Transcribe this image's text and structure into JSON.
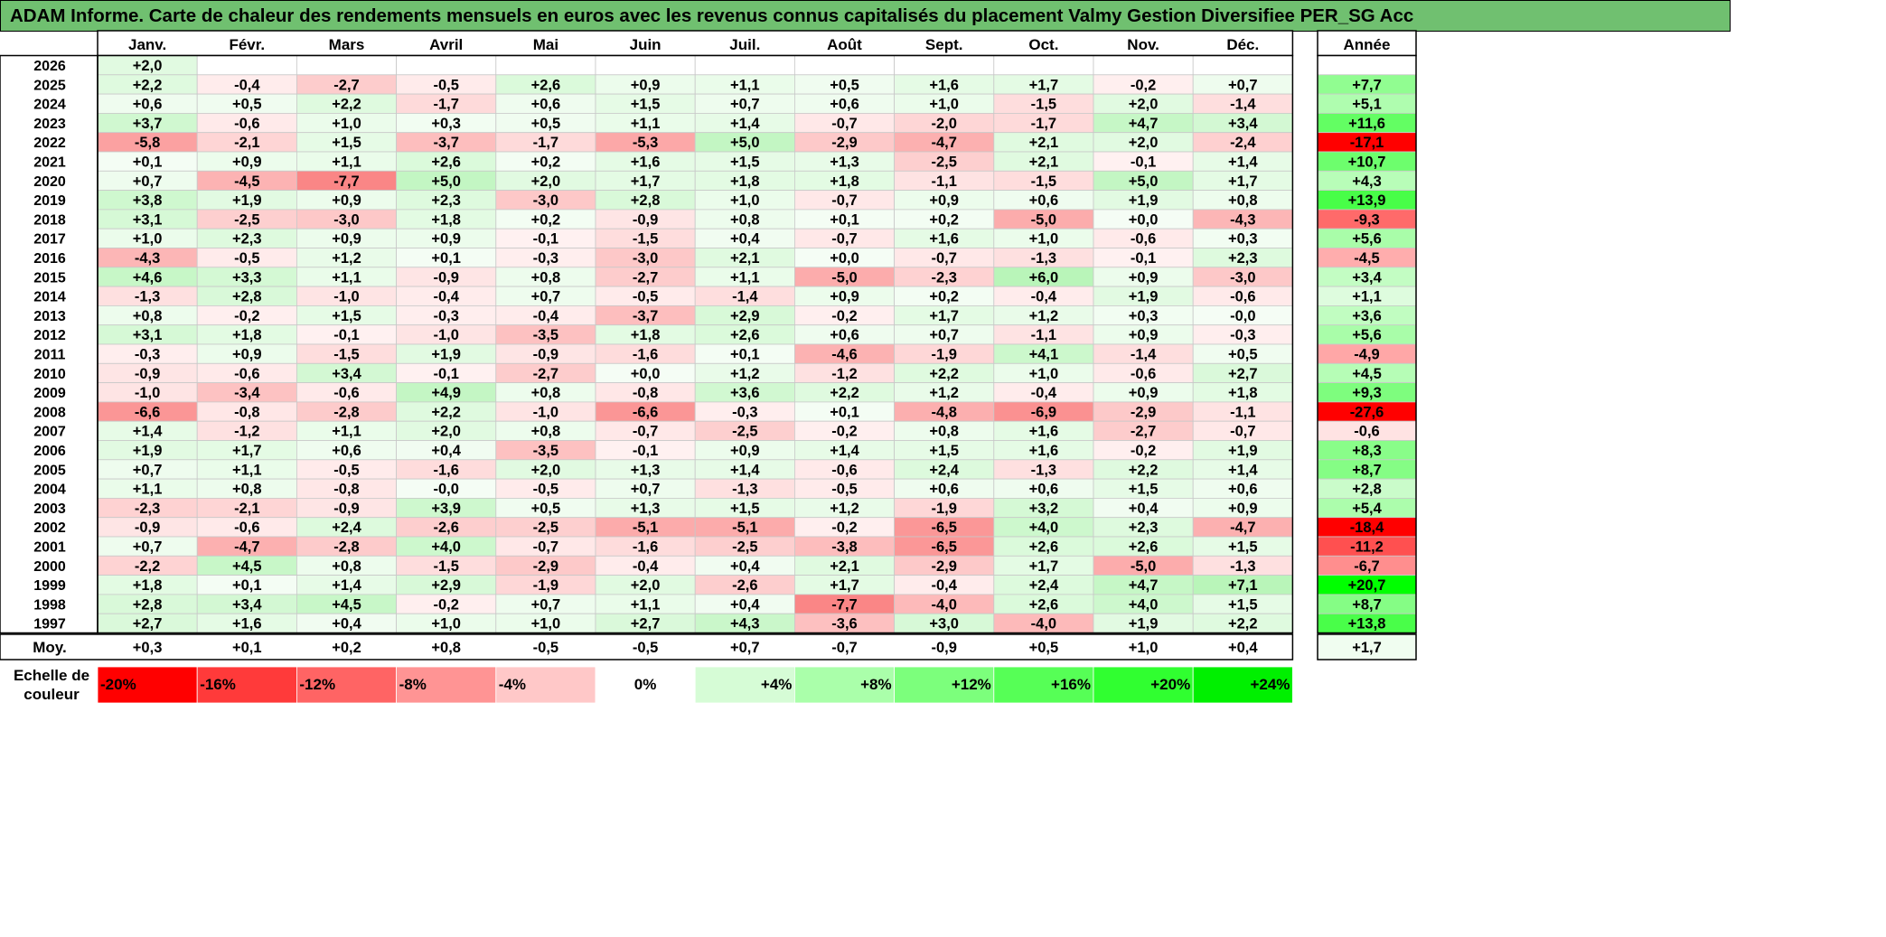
{
  "title": "ADAM Informe. Carte de chaleur des rendements mensuels en euros avec les revenus connus capitalisés du placement Valmy Gestion Diversifiee PER_SG Acc",
  "colors": {
    "title_bg": "#70c070",
    "positive": "#00ff00",
    "negative": "#ff0000",
    "neutral": "#ffffff"
  },
  "chart_data": {
    "type": "heatmap",
    "months": [
      "Janv.",
      "Févr.",
      "Mars",
      "Avril",
      "Mai",
      "Juin",
      "Juil.",
      "Août",
      "Sept.",
      "Oct.",
      "Nov.",
      "Déc."
    ],
    "year_header": "Année",
    "rows": [
      {
        "year": "2026",
        "values": [
          "+2,0",
          "",
          "",
          "",
          "",
          "",
          "",
          "",
          "",
          "",
          "",
          ""
        ],
        "annual": ""
      },
      {
        "year": "2025",
        "values": [
          "+2,2",
          "-0,4",
          "-2,7",
          "-0,5",
          "+2,6",
          "+0,9",
          "+1,1",
          "+0,5",
          "+1,6",
          "+1,7",
          "-0,2",
          "+0,7"
        ],
        "annual": "+7,7"
      },
      {
        "year": "2024",
        "values": [
          "+0,6",
          "+0,5",
          "+2,2",
          "-1,7",
          "+0,6",
          "+1,5",
          "+0,7",
          "+0,6",
          "+1,0",
          "-1,5",
          "+2,0",
          "-1,4"
        ],
        "annual": "+5,1"
      },
      {
        "year": "2023",
        "values": [
          "+3,7",
          "-0,6",
          "+1,0",
          "+0,3",
          "+0,5",
          "+1,1",
          "+1,4",
          "-0,7",
          "-2,0",
          "-1,7",
          "+4,7",
          "+3,4"
        ],
        "annual": "+11,6"
      },
      {
        "year": "2022",
        "values": [
          "-5,8",
          "-2,1",
          "+1,5",
          "-3,7",
          "-1,7",
          "-5,3",
          "+5,0",
          "-2,9",
          "-4,7",
          "+2,1",
          "+2,0",
          "-2,4"
        ],
        "annual": "-17,1"
      },
      {
        "year": "2021",
        "values": [
          "+0,1",
          "+0,9",
          "+1,1",
          "+2,6",
          "+0,2",
          "+1,6",
          "+1,5",
          "+1,3",
          "-2,5",
          "+2,1",
          "-0,1",
          "+1,4"
        ],
        "annual": "+10,7"
      },
      {
        "year": "2020",
        "values": [
          "+0,7",
          "-4,5",
          "-7,7",
          "+5,0",
          "+2,0",
          "+1,7",
          "+1,8",
          "+1,8",
          "-1,1",
          "-1,5",
          "+5,0",
          "+1,7"
        ],
        "annual": "+4,3"
      },
      {
        "year": "2019",
        "values": [
          "+3,8",
          "+1,9",
          "+0,9",
          "+2,3",
          "-3,0",
          "+2,8",
          "+1,0",
          "-0,7",
          "+0,9",
          "+0,6",
          "+1,9",
          "+0,8"
        ],
        "annual": "+13,9"
      },
      {
        "year": "2018",
        "values": [
          "+3,1",
          "-2,5",
          "-3,0",
          "+1,8",
          "+0,2",
          "-0,9",
          "+0,8",
          "+0,1",
          "+0,2",
          "-5,0",
          "+0,0",
          "-4,3"
        ],
        "annual": "-9,3"
      },
      {
        "year": "2017",
        "values": [
          "+1,0",
          "+2,3",
          "+0,9",
          "+0,9",
          "-0,1",
          "-1,5",
          "+0,4",
          "-0,7",
          "+1,6",
          "+1,0",
          "-0,6",
          "+0,3"
        ],
        "annual": "+5,6"
      },
      {
        "year": "2016",
        "values": [
          "-4,3",
          "-0,5",
          "+1,2",
          "+0,1",
          "-0,3",
          "-3,0",
          "+2,1",
          "+0,0",
          "-0,7",
          "-1,3",
          "-0,1",
          "+2,3"
        ],
        "annual": "-4,5"
      },
      {
        "year": "2015",
        "values": [
          "+4,6",
          "+3,3",
          "+1,1",
          "-0,9",
          "+0,8",
          "-2,7",
          "+1,1",
          "-5,0",
          "-2,3",
          "+6,0",
          "+0,9",
          "-3,0"
        ],
        "annual": "+3,4"
      },
      {
        "year": "2014",
        "values": [
          "-1,3",
          "+2,8",
          "-1,0",
          "-0,4",
          "+0,7",
          "-0,5",
          "-1,4",
          "+0,9",
          "+0,2",
          "-0,4",
          "+1,9",
          "-0,6"
        ],
        "annual": "+1,1"
      },
      {
        "year": "2013",
        "values": [
          "+0,8",
          "-0,2",
          "+1,5",
          "-0,3",
          "-0,4",
          "-3,7",
          "+2,9",
          "-0,2",
          "+1,7",
          "+1,2",
          "+0,3",
          "-0,0"
        ],
        "annual": "+3,6"
      },
      {
        "year": "2012",
        "values": [
          "+3,1",
          "+1,8",
          "-0,1",
          "-1,0",
          "-3,5",
          "+1,8",
          "+2,6",
          "+0,6",
          "+0,7",
          "-1,1",
          "+0,9",
          "-0,3"
        ],
        "annual": "+5,6"
      },
      {
        "year": "2011",
        "values": [
          "-0,3",
          "+0,9",
          "-1,5",
          "+1,9",
          "-0,9",
          "-1,6",
          "+0,1",
          "-4,6",
          "-1,9",
          "+4,1",
          "-1,4",
          "+0,5"
        ],
        "annual": "-4,9"
      },
      {
        "year": "2010",
        "values": [
          "-0,9",
          "-0,6",
          "+3,4",
          "-0,1",
          "-2,7",
          "+0,0",
          "+1,2",
          "-1,2",
          "+2,2",
          "+1,0",
          "-0,6",
          "+2,7"
        ],
        "annual": "+4,5"
      },
      {
        "year": "2009",
        "values": [
          "-1,0",
          "-3,4",
          "-0,6",
          "+4,9",
          "+0,8",
          "-0,8",
          "+3,6",
          "+2,2",
          "+1,2",
          "-0,4",
          "+0,9",
          "+1,8"
        ],
        "annual": "+9,3"
      },
      {
        "year": "2008",
        "values": [
          "-6,6",
          "-0,8",
          "-2,8",
          "+2,2",
          "-1,0",
          "-6,6",
          "-0,3",
          "+0,1",
          "-4,8",
          "-6,9",
          "-2,9",
          "-1,1"
        ],
        "annual": "-27,6"
      },
      {
        "year": "2007",
        "values": [
          "+1,4",
          "-1,2",
          "+1,1",
          "+2,0",
          "+0,8",
          "-0,7",
          "-2,5",
          "-0,2",
          "+0,8",
          "+1,6",
          "-2,7",
          "-0,7"
        ],
        "annual": "-0,6"
      },
      {
        "year": "2006",
        "values": [
          "+1,9",
          "+1,7",
          "+0,6",
          "+0,4",
          "-3,5",
          "-0,1",
          "+0,9",
          "+1,4",
          "+1,5",
          "+1,6",
          "-0,2",
          "+1,9"
        ],
        "annual": "+8,3"
      },
      {
        "year": "2005",
        "values": [
          "+0,7",
          "+1,1",
          "-0,5",
          "-1,6",
          "+2,0",
          "+1,3",
          "+1,4",
          "-0,6",
          "+2,4",
          "-1,3",
          "+2,2",
          "+1,4"
        ],
        "annual": "+8,7"
      },
      {
        "year": "2004",
        "values": [
          "+1,1",
          "+0,8",
          "-0,8",
          "-0,0",
          "-0,5",
          "+0,7",
          "-1,3",
          "-0,5",
          "+0,6",
          "+0,6",
          "+1,5",
          "+0,6"
        ],
        "annual": "+2,8"
      },
      {
        "year": "2003",
        "values": [
          "-2,3",
          "-2,1",
          "-0,9",
          "+3,9",
          "+0,5",
          "+1,3",
          "+1,5",
          "+1,2",
          "-1,9",
          "+3,2",
          "+0,4",
          "+0,9"
        ],
        "annual": "+5,4"
      },
      {
        "year": "2002",
        "values": [
          "-0,9",
          "-0,6",
          "+2,4",
          "-2,6",
          "-2,5",
          "-5,1",
          "-5,1",
          "-0,2",
          "-6,5",
          "+4,0",
          "+2,3",
          "-4,7"
        ],
        "annual": "-18,4"
      },
      {
        "year": "2001",
        "values": [
          "+0,7",
          "-4,7",
          "-2,8",
          "+4,0",
          "-0,7",
          "-1,6",
          "-2,5",
          "-3,8",
          "-6,5",
          "+2,6",
          "+2,6",
          "+1,5"
        ],
        "annual": "-11,2"
      },
      {
        "year": "2000",
        "values": [
          "-2,2",
          "+4,5",
          "+0,8",
          "-1,5",
          "-2,9",
          "-0,4",
          "+0,4",
          "+2,1",
          "-2,9",
          "+1,7",
          "-5,0",
          "-1,3"
        ],
        "annual": "-6,7"
      },
      {
        "year": "1999",
        "values": [
          "+1,8",
          "+0,1",
          "+1,4",
          "+2,9",
          "-1,9",
          "+2,0",
          "-2,6",
          "+1,7",
          "-0,4",
          "+2,4",
          "+4,7",
          "+7,1"
        ],
        "annual": "+20,7"
      },
      {
        "year": "1998",
        "values": [
          "+2,8",
          "+3,4",
          "+4,5",
          "-0,2",
          "+0,7",
          "+1,1",
          "+0,4",
          "-7,7",
          "-4,0",
          "+2,6",
          "+4,0",
          "+1,5"
        ],
        "annual": "+8,7"
      },
      {
        "year": "1997",
        "values": [
          "+2,7",
          "+1,6",
          "+0,4",
          "+1,0",
          "+1,0",
          "+2,7",
          "+4,3",
          "-3,6",
          "+3,0",
          "-4,0",
          "+1,9",
          "+2,2"
        ],
        "annual": "+13,8"
      }
    ],
    "average": {
      "label": "Moy.",
      "values": [
        "+0,3",
        "+0,1",
        "+0,2",
        "+0,8",
        "-0,5",
        "-0,5",
        "+0,7",
        "-0,7",
        "-0,9",
        "+0,5",
        "+1,0",
        "+0,4"
      ],
      "annual": "+1,7"
    },
    "scale": {
      "label": [
        "Echelle de",
        "couleur"
      ],
      "stops": [
        "-20%",
        "-16%",
        "-12%",
        "-8%",
        "-4%",
        "0%",
        "+4%",
        "+8%",
        "+12%",
        "+16%",
        "+20%",
        "+24%"
      ]
    }
  }
}
